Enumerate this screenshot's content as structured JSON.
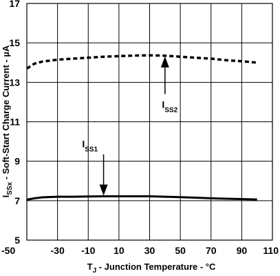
{
  "chart_data": {
    "type": "line",
    "xlabel": {
      "main": "T",
      "sub": "J",
      "rest": " - Junction Temperature - °C"
    },
    "ylabel": {
      "main": "I",
      "sub": "SSx",
      "rest": " - Soft-Start Charge Current - µA"
    },
    "xlim": [
      -50,
      110
    ],
    "ylim": [
      5,
      17
    ],
    "xticks": [
      -50,
      -30,
      -10,
      10,
      30,
      50,
      70,
      90,
      110
    ],
    "yticks": [
      5,
      7,
      9,
      11,
      13,
      15,
      17
    ],
    "grid": true,
    "series": [
      {
        "name": "ISS2",
        "style": "dashed",
        "color": "#000000",
        "x": [
          -50,
          -45,
          -40,
          -30,
          -20,
          -10,
          0,
          10,
          20,
          30,
          40,
          50,
          60,
          70,
          80,
          90,
          100
        ],
        "y": [
          13.7,
          13.95,
          14.05,
          14.15,
          14.2,
          14.25,
          14.3,
          14.33,
          14.36,
          14.37,
          14.35,
          14.3,
          14.25,
          14.2,
          14.12,
          14.07,
          14.0
        ]
      },
      {
        "name": "ISS1",
        "style": "solid",
        "color": "#000000",
        "x": [
          -50,
          -45,
          -40,
          -30,
          -20,
          -10,
          0,
          10,
          20,
          30,
          40,
          50,
          60,
          70,
          80,
          90,
          100
        ],
        "y": [
          7.05,
          7.12,
          7.17,
          7.2,
          7.2,
          7.21,
          7.22,
          7.22,
          7.22,
          7.22,
          7.2,
          7.18,
          7.15,
          7.12,
          7.1,
          7.08,
          7.06
        ]
      }
    ],
    "annotations": [
      {
        "id": "iss2",
        "main": "I",
        "sub": "SS2",
        "arrow_to": {
          "x": 40,
          "y": 14.35
        },
        "text_at": {
          "x": 38,
          "y": 11.7
        }
      },
      {
        "id": "iss1",
        "main": "I",
        "sub": "SS1",
        "arrow_to": {
          "x": 0,
          "y": 7.22
        },
        "text_at": {
          "x": -14,
          "y": 9.7
        }
      }
    ]
  }
}
